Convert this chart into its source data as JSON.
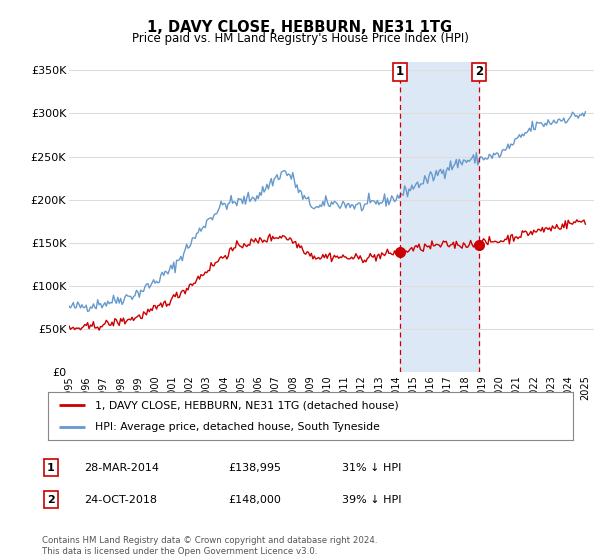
{
  "title": "1, DAVY CLOSE, HEBBURN, NE31 1TG",
  "subtitle": "Price paid vs. HM Land Registry's House Price Index (HPI)",
  "background_color": "#ffffff",
  "plot_bg_color": "#ffffff",
  "grid_color": "#dddddd",
  "ylabel_ticks": [
    "£0",
    "£50K",
    "£100K",
    "£150K",
    "£200K",
    "£250K",
    "£300K",
    "£350K"
  ],
  "ytick_vals": [
    0,
    50000,
    100000,
    150000,
    200000,
    250000,
    300000,
    350000
  ],
  "ylim": [
    0,
    360000
  ],
  "xlim_start": 1995.0,
  "xlim_end": 2025.5,
  "marker1_x": 2014.23,
  "marker1_y": 138995,
  "marker2_x": 2018.81,
  "marker2_y": 148000,
  "vline1_x": 2014.23,
  "vline2_x": 2018.81,
  "shade_x1": 2014.23,
  "shade_x2": 2018.81,
  "shade_color": "#dce8f5",
  "legend_label_red": "1, DAVY CLOSE, HEBBURN, NE31 1TG (detached house)",
  "legend_label_blue": "HPI: Average price, detached house, South Tyneside",
  "table_rows": [
    {
      "num": "1",
      "date": "28-MAR-2014",
      "price": "£138,995",
      "pct": "31% ↓ HPI"
    },
    {
      "num": "2",
      "date": "24-OCT-2018",
      "price": "£148,000",
      "pct": "39% ↓ HPI"
    }
  ],
  "footer": "Contains HM Land Registry data © Crown copyright and database right 2024.\nThis data is licensed under the Open Government Licence v3.0.",
  "red_color": "#cc0000",
  "blue_color": "#6699cc",
  "hpi_points": [
    [
      1995.0,
      75000
    ],
    [
      1996.0,
      77000
    ],
    [
      1997.0,
      80000
    ],
    [
      1998.0,
      85000
    ],
    [
      1999.0,
      92000
    ],
    [
      2000.0,
      105000
    ],
    [
      2001.0,
      120000
    ],
    [
      2002.0,
      148000
    ],
    [
      2003.0,
      175000
    ],
    [
      2004.0,
      195000
    ],
    [
      2005.0,
      198000
    ],
    [
      2006.0,
      205000
    ],
    [
      2007.0,
      225000
    ],
    [
      2007.5,
      233000
    ],
    [
      2008.0,
      225000
    ],
    [
      2008.5,
      205000
    ],
    [
      2009.0,
      195000
    ],
    [
      2009.5,
      190000
    ],
    [
      2010.0,
      196000
    ],
    [
      2011.0,
      195000
    ],
    [
      2012.0,
      192000
    ],
    [
      2013.0,
      197000
    ],
    [
      2014.0,
      202000
    ],
    [
      2015.0,
      215000
    ],
    [
      2016.0,
      225000
    ],
    [
      2017.0,
      238000
    ],
    [
      2018.0,
      245000
    ],
    [
      2019.0,
      248000
    ],
    [
      2020.0,
      252000
    ],
    [
      2021.0,
      268000
    ],
    [
      2022.0,
      285000
    ],
    [
      2023.0,
      290000
    ],
    [
      2024.0,
      295000
    ],
    [
      2025.0,
      300000
    ]
  ],
  "red_points": [
    [
      1995.0,
      50000
    ],
    [
      1996.0,
      52000
    ],
    [
      1997.0,
      55000
    ],
    [
      1998.0,
      59000
    ],
    [
      1999.0,
      64000
    ],
    [
      2000.0,
      73000
    ],
    [
      2001.0,
      85000
    ],
    [
      2002.0,
      100000
    ],
    [
      2003.0,
      118000
    ],
    [
      2004.0,
      135000
    ],
    [
      2005.0,
      148000
    ],
    [
      2006.0,
      152000
    ],
    [
      2007.0,
      157000
    ],
    [
      2007.5,
      158000
    ],
    [
      2008.0,
      152000
    ],
    [
      2008.5,
      145000
    ],
    [
      2009.0,
      137000
    ],
    [
      2009.5,
      133000
    ],
    [
      2010.0,
      135000
    ],
    [
      2011.0,
      133000
    ],
    [
      2012.0,
      132000
    ],
    [
      2013.0,
      135000
    ],
    [
      2014.0,
      138995
    ],
    [
      2015.0,
      143000
    ],
    [
      2016.0,
      146000
    ],
    [
      2017.0,
      148000
    ],
    [
      2018.0,
      148000
    ],
    [
      2019.0,
      150000
    ],
    [
      2020.0,
      152000
    ],
    [
      2021.0,
      158000
    ],
    [
      2022.0,
      163000
    ],
    [
      2023.0,
      167000
    ],
    [
      2024.0,
      172000
    ],
    [
      2025.0,
      176000
    ]
  ]
}
